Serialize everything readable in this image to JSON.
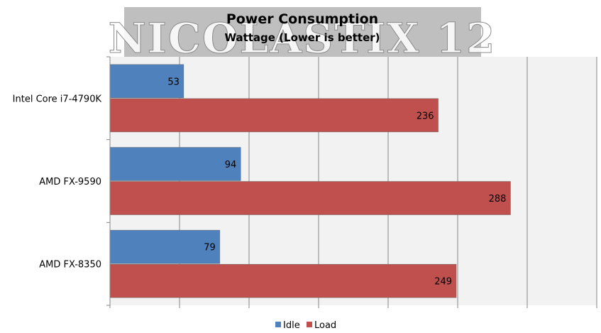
{
  "chart_data": {
    "type": "bar",
    "orientation": "horizontal",
    "title": "Power Consumption",
    "subtitle": "Wattage (Lower is better)",
    "watermark_text": "NICOLASTIX 12",
    "categories": [
      "Intel Core i7-4790K",
      "AMD FX-9590",
      "AMD FX-8350"
    ],
    "series": [
      {
        "name": "Idle",
        "values": [
          53,
          94,
          79
        ],
        "color": "#4f81bd"
      },
      {
        "name": "Load",
        "values": [
          236,
          288,
          249
        ],
        "color": "#c0504d"
      }
    ],
    "xlim": [
      0,
      350
    ],
    "grid": true,
    "legend_position": "bottom"
  },
  "colors": {
    "plot_background": "#f2f2f2",
    "gridline": "#868686",
    "label_text": "#000000",
    "title_box": "#bfbfbf"
  }
}
